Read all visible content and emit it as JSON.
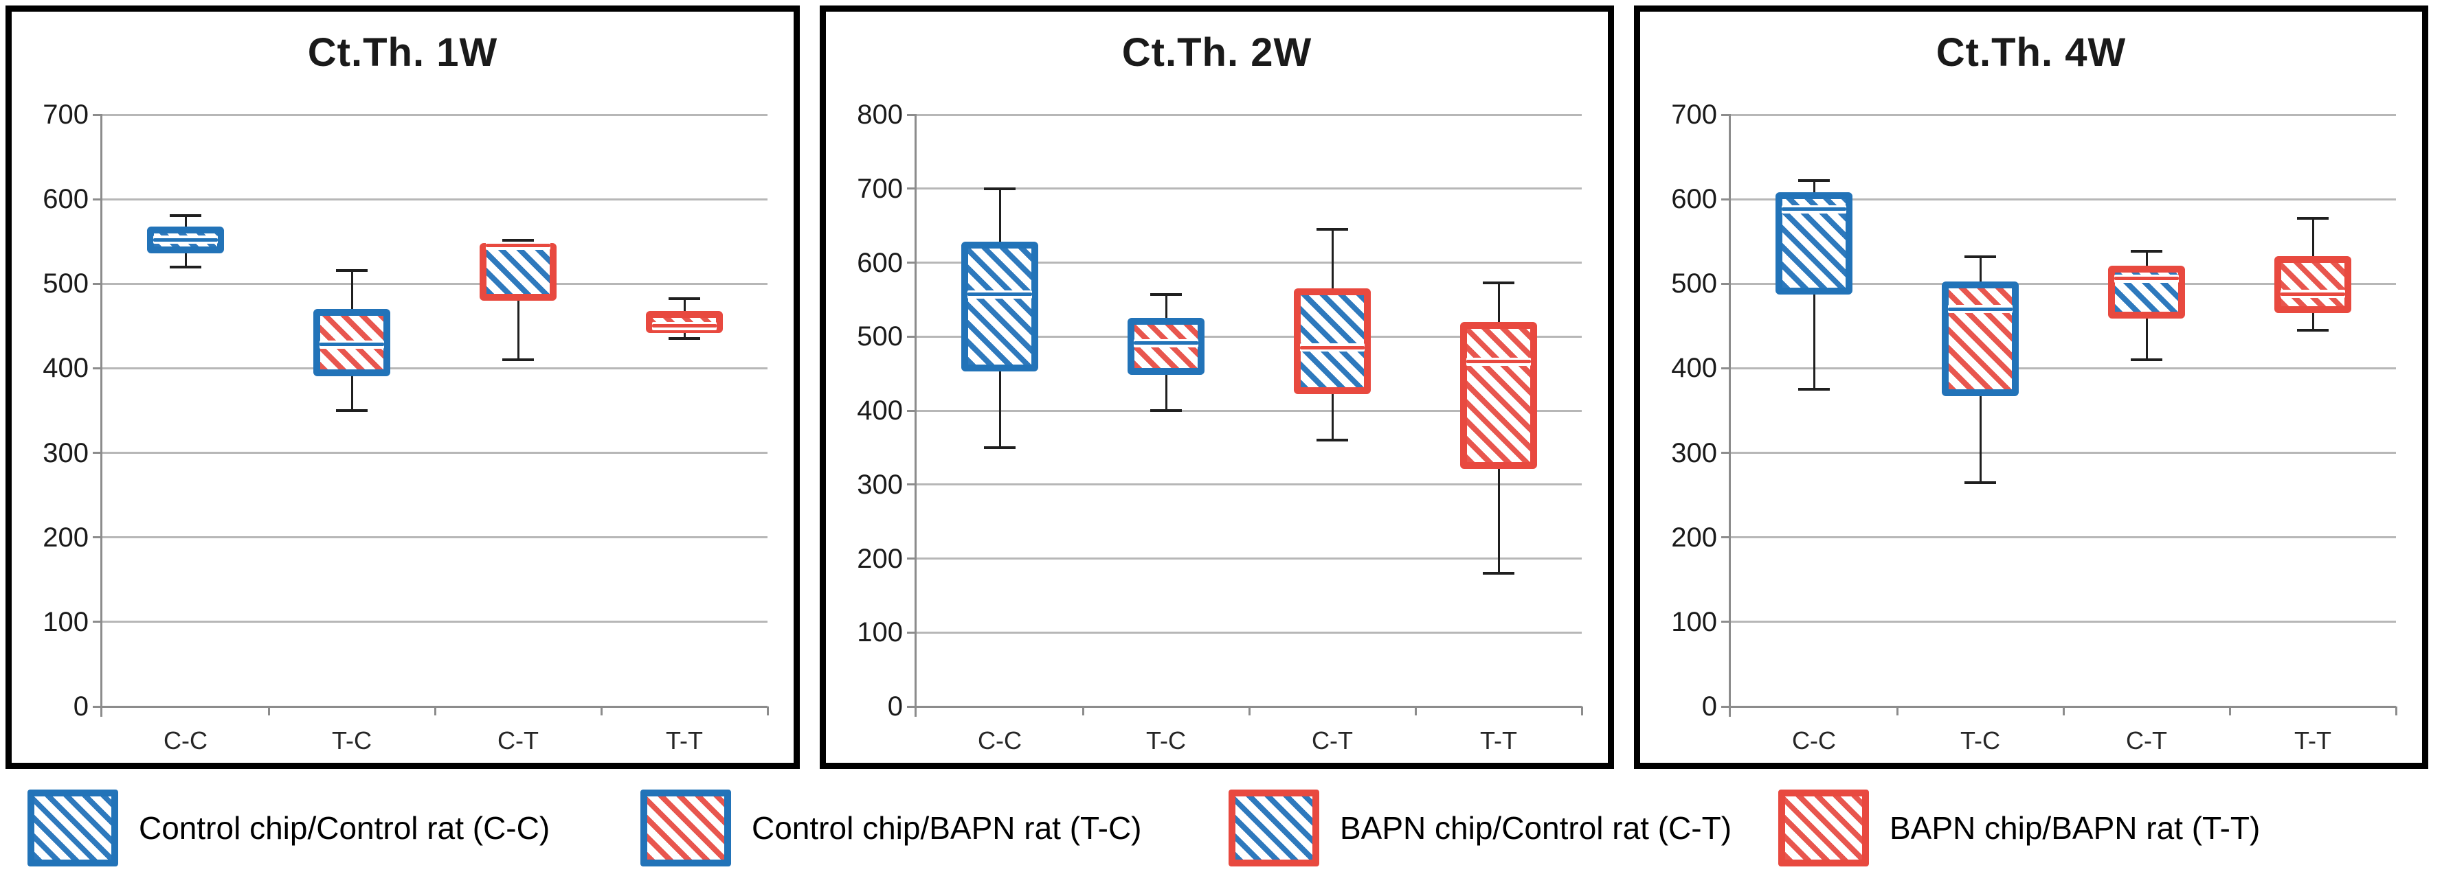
{
  "chart_data": [
    {
      "type": "box",
      "title": "Ct.Th. 1W",
      "xlabel": "",
      "ylabel": "",
      "ylim": [
        0,
        700
      ],
      "yticks": [
        0,
        100,
        200,
        300,
        400,
        500,
        600,
        700
      ],
      "grid": true,
      "categories": [
        "C-C",
        "T-C",
        "C-T",
        "T-T"
      ],
      "boxes": [
        {
          "category": "C-C",
          "style": "cc",
          "whisker_low": 520,
          "q1": 536,
          "median": 552,
          "q3": 568,
          "whisker_high": 581
        },
        {
          "category": "T-C",
          "style": "tc",
          "whisker_low": 350,
          "q1": 391,
          "median": 428,
          "q3": 470,
          "whisker_high": 516
        },
        {
          "category": "C-T",
          "style": "ct",
          "whisker_low": 410,
          "q1": 480,
          "median": 545,
          "q3": 548,
          "whisker_high": 551
        },
        {
          "category": "T-T",
          "style": "tt",
          "whisker_low": 435,
          "q1": 442,
          "median": 450,
          "q3": 468,
          "whisker_high": 482
        }
      ]
    },
    {
      "type": "box",
      "title": "Ct.Th. 2W",
      "xlabel": "",
      "ylabel": "",
      "ylim": [
        0,
        800
      ],
      "yticks": [
        0,
        100,
        200,
        300,
        400,
        500,
        600,
        700,
        800
      ],
      "grid": true,
      "categories": [
        "C-C",
        "T-C",
        "C-T",
        "T-T"
      ],
      "boxes": [
        {
          "category": "C-C",
          "style": "cc",
          "whisker_low": 350,
          "q1": 453,
          "median": 557,
          "q3": 628,
          "whisker_high": 700
        },
        {
          "category": "T-C",
          "style": "tc",
          "whisker_low": 400,
          "q1": 448,
          "median": 491,
          "q3": 525,
          "whisker_high": 557
        },
        {
          "category": "C-T",
          "style": "ct",
          "whisker_low": 360,
          "q1": 422,
          "median": 485,
          "q3": 565,
          "whisker_high": 645
        },
        {
          "category": "T-T",
          "style": "tt",
          "whisker_low": 180,
          "q1": 321,
          "median": 466,
          "q3": 520,
          "whisker_high": 573
        }
      ]
    },
    {
      "type": "box",
      "title": "Ct.Th. 4W",
      "xlabel": "",
      "ylabel": "",
      "ylim": [
        0,
        700
      ],
      "yticks": [
        0,
        100,
        200,
        300,
        400,
        500,
        600,
        700
      ],
      "grid": true,
      "categories": [
        "C-C",
        "T-C",
        "C-T",
        "T-T"
      ],
      "boxes": [
        {
          "category": "C-C",
          "style": "cc",
          "whisker_low": 375,
          "q1": 487,
          "median": 588,
          "q3": 608,
          "whisker_high": 622
        },
        {
          "category": "T-C",
          "style": "tc",
          "whisker_low": 265,
          "q1": 367,
          "median": 470,
          "q3": 503,
          "whisker_high": 532
        },
        {
          "category": "C-T",
          "style": "ct",
          "whisker_low": 410,
          "q1": 459,
          "median": 506,
          "q3": 521,
          "whisker_high": 538
        },
        {
          "category": "T-T",
          "style": "tt",
          "whisker_low": 445,
          "q1": 465,
          "median": 488,
          "q3": 533,
          "whisker_high": 577
        }
      ]
    }
  ],
  "legend": [
    {
      "style": "cc",
      "label": "Control chip/Control rat (C-C)"
    },
    {
      "style": "tc",
      "label": "Control chip/BAPN rat (T-C)"
    },
    {
      "style": "ct",
      "label": "BAPN chip/Control rat (C-T)"
    },
    {
      "style": "tt",
      "label": "BAPN chip/BAPN rat (T-T)"
    }
  ],
  "styles": {
    "cc": {
      "border": "#2273b8",
      "hatch": "#2e79bd"
    },
    "tc": {
      "border": "#2273b8",
      "hatch": "#e8564e"
    },
    "ct": {
      "border": "#e8493f",
      "hatch": "#2e79bd"
    },
    "tt": {
      "border": "#e8493f",
      "hatch": "#e8564e"
    }
  },
  "colors": {
    "grid": "#b7b7b7",
    "axis": "#8c8c8c",
    "whisker": "#1f1f1f",
    "panel_border": "#000000",
    "background": "#ffffff"
  }
}
